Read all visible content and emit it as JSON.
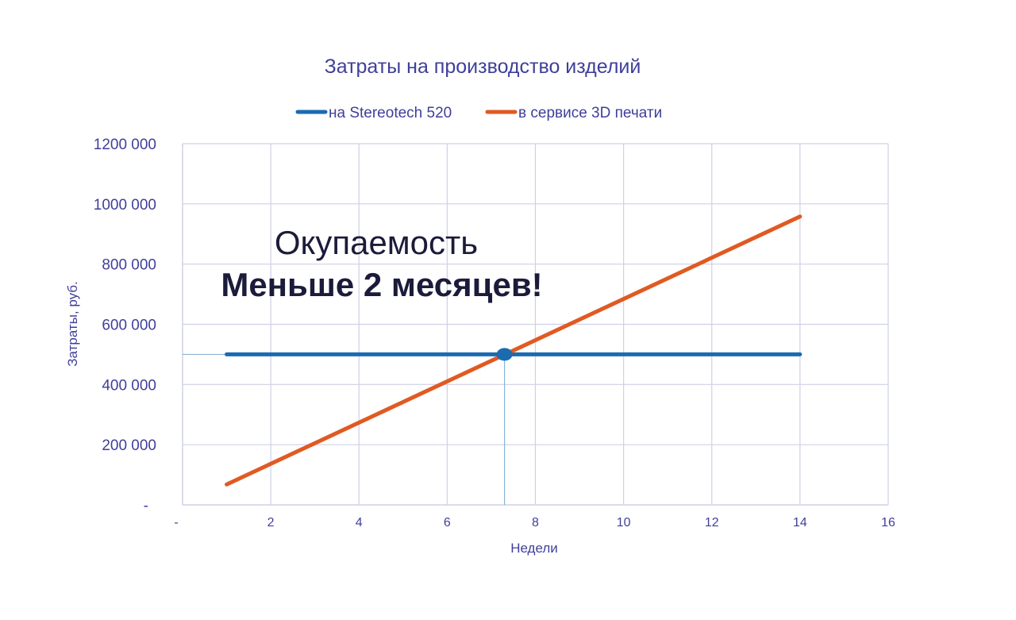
{
  "chart_data": {
    "type": "line",
    "title": "Затраты на производство изделий",
    "xlabel": "Недели",
    "ylabel": "Затраты, руб.",
    "xlim": [
      0,
      16
    ],
    "ylim": [
      0,
      1200000
    ],
    "x_ticks": [
      0,
      2,
      4,
      6,
      8,
      10,
      12,
      14,
      16
    ],
    "x_tick_labels": [
      "-",
      "2",
      "4",
      "6",
      "8",
      "10",
      "12",
      "14",
      "16"
    ],
    "y_ticks": [
      0,
      200000,
      400000,
      600000,
      800000,
      1000000,
      1200000
    ],
    "y_tick_labels": [
      "-",
      "200 000",
      "400 000",
      "600 000",
      "800 000",
      "1000 000",
      "1200 000"
    ],
    "grid": true,
    "legend": "top",
    "series": [
      {
        "name": "на Stereotech 520",
        "color": "#1a6bb0",
        "x": [
          1,
          14
        ],
        "y": [
          500000,
          500000
        ]
      },
      {
        "name": "в сервисе 3D печати",
        "color": "#e05a22",
        "x": [
          1,
          14
        ],
        "y": [
          68000,
          958000
        ]
      }
    ],
    "intersection": {
      "x": 7.3,
      "y": 500000
    },
    "annotation": {
      "line1": "Окупаемость",
      "line2": "Меньше 2 месяцев!"
    }
  }
}
